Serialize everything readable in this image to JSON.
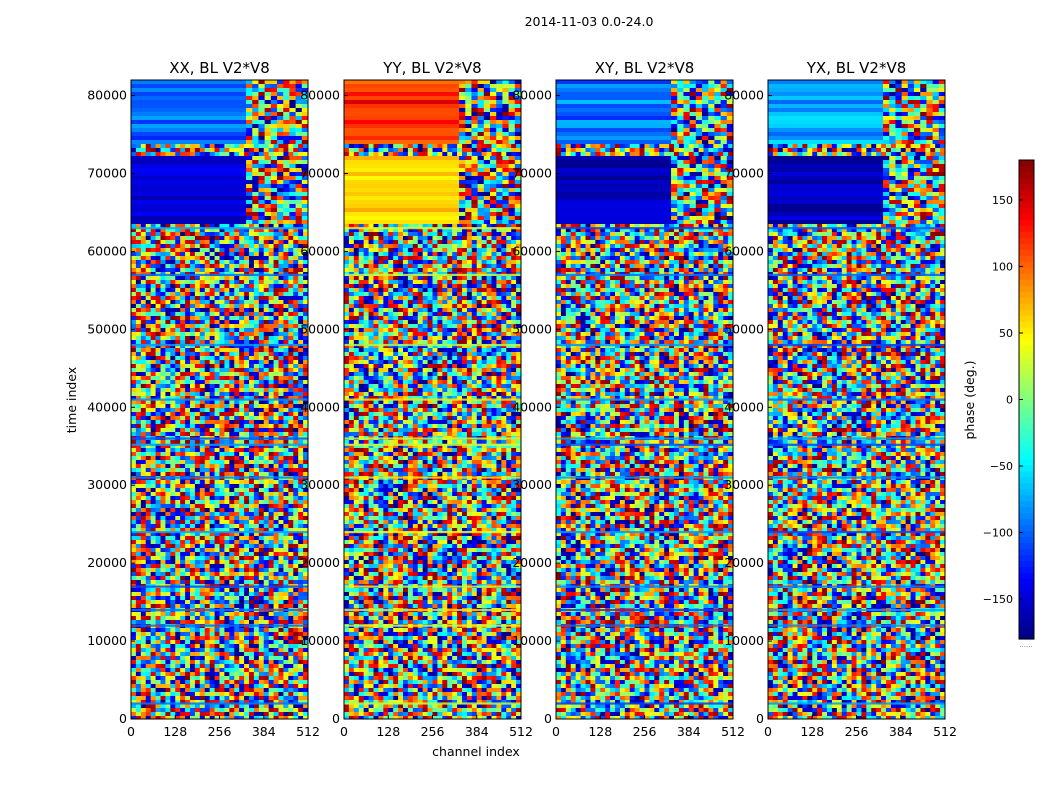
{
  "figure": {
    "suptitle": "2014-11-03 0.0-24.0"
  },
  "chart_data": {
    "type": "heatmap",
    "colormap": "jet",
    "xlabel": "channel index",
    "ylabel": "time index",
    "xlim": [
      0,
      512
    ],
    "ylim": [
      0,
      82000
    ],
    "xticks": [
      0,
      128,
      256,
      384,
      512
    ],
    "yticks": [
      0,
      10000,
      20000,
      30000,
      40000,
      50000,
      60000,
      70000,
      80000
    ],
    "colorbar": {
      "label": "phase (deg.)",
      "range": [
        -180,
        180
      ],
      "ticks": [
        -150,
        -100,
        -50,
        0,
        50,
        100,
        150
      ],
      "tick_labels": [
        "−150",
        "−100",
        "−50",
        "0",
        "50",
        "100",
        "150"
      ],
      "footer_text": "......"
    },
    "panels": [
      {
        "title": "XX, BL V2*V8",
        "key": "xx",
        "top_band_phase": -100,
        "mid_band_phase": -150
      },
      {
        "title": "YY, BL V2*V8",
        "key": "yy",
        "top_band_phase": 120,
        "mid_band_phase": 60
      },
      {
        "title": "XY, BL V2*V8",
        "key": "xy",
        "top_band_phase": -90,
        "mid_band_phase": -160
      },
      {
        "title": "YX, BL V2*V8",
        "key": "yx",
        "top_band_phase": -80,
        "mid_band_phase": -160
      }
    ]
  }
}
